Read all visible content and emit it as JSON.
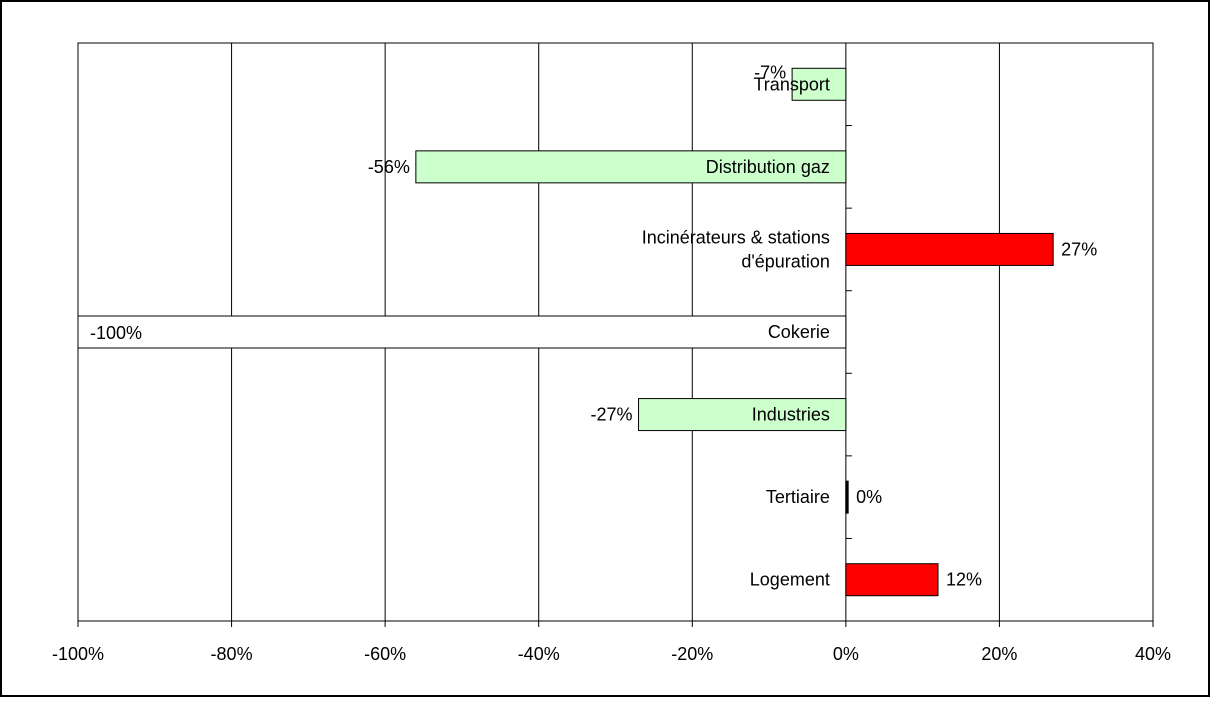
{
  "chart_data": {
    "type": "bar",
    "orientation": "horizontal",
    "title": "",
    "xlabel": "",
    "ylabel": "",
    "xlim": [
      -1.0,
      0.4
    ],
    "x_ticks": [
      -1.0,
      -0.8,
      -0.6,
      -0.4,
      -0.2,
      0.0,
      0.2,
      0.4
    ],
    "x_tick_labels": [
      "-100%",
      "-80%",
      "-60%",
      "-40%",
      "-20%",
      "0%",
      "20%",
      "40%"
    ],
    "grid": "vertical",
    "legend": "none",
    "categories": [
      "Transport",
      "Distribution gaz",
      "Incinérateurs & stations d'épuration",
      "Cokerie",
      "Industries",
      "Tertiaire",
      "Logement"
    ],
    "category_label_lines": [
      [
        "Transport"
      ],
      [
        "Distribution gaz"
      ],
      [
        "Incinérateurs & stations",
        "d'épuration"
      ],
      [
        "Cokerie"
      ],
      [
        "Industries"
      ],
      [
        "Tertiaire"
      ],
      [
        "Logement"
      ]
    ],
    "values": [
      -0.07,
      -0.56,
      0.27,
      -1.0,
      -0.27,
      0.003,
      0.12
    ],
    "value_labels": [
      "-7%",
      "-56%",
      "27%",
      "-100%",
      "-27%",
      "0%",
      "12%"
    ],
    "bar_colors": [
      "#ccffcc",
      "#ccffcc",
      "#ff0000",
      "#ffffff",
      "#ccffcc",
      "#000000",
      "#ff0000"
    ]
  }
}
